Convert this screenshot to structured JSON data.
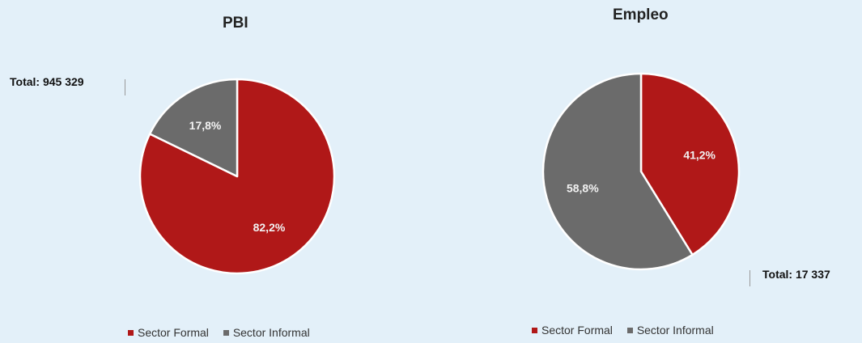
{
  "colors": {
    "formal": "#b01818",
    "informal": "#6b6b6b",
    "background": "#e3f0f9"
  },
  "chart_data": [
    {
      "type": "pie",
      "title": "PBI",
      "total_label": "Total: 945 329",
      "categories": [
        "Sector Formal",
        "Sector Informal"
      ],
      "values": [
        82.2,
        17.8
      ],
      "value_labels": [
        "82,2%",
        "17,8%"
      ],
      "legend": [
        "Sector Formal",
        "Sector Informal"
      ],
      "legend_position": "bottom"
    },
    {
      "type": "pie",
      "title": "Empleo",
      "total_label": "Total: 17 337",
      "categories": [
        "Sector Formal",
        "Sector Informal"
      ],
      "values": [
        41.2,
        58.8
      ],
      "value_labels": [
        "41,2%",
        "58,8%"
      ],
      "legend": [
        "Sector Formal",
        "Sector Informal"
      ],
      "legend_position": "bottom"
    }
  ]
}
